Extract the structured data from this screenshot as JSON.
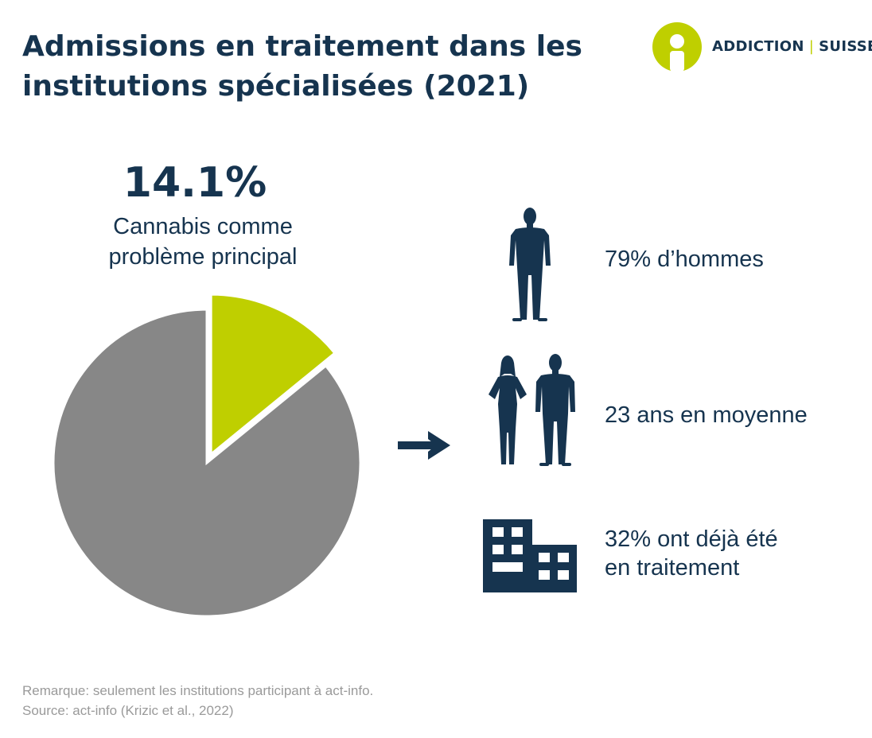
{
  "header": {
    "title_line1": "Admissions en traitement dans les",
    "title_line2": "institutions spécialisées (2021)"
  },
  "logo": {
    "left_text": "ADDICTION",
    "separator": "|",
    "right_text": "SUISSE",
    "accent_color": "#bfcf00"
  },
  "highlight": {
    "percent_label": "14.1%",
    "caption_line1": "Cannabis comme",
    "caption_line2": "problème principal"
  },
  "chart_data": {
    "type": "pie",
    "slices": [
      {
        "value": 14.1,
        "color": "#bfcf00",
        "exploded": true
      },
      {
        "value": 85.9,
        "color": "#878787",
        "exploded": false
      }
    ]
  },
  "stats": [
    {
      "icon": "man-silhouette-icon",
      "line1": "79% d’hommes",
      "line2": ""
    },
    {
      "icon": "couple-silhouette-icon",
      "line1": "23 ans en moyenne",
      "line2": ""
    },
    {
      "icon": "building-icon",
      "line1": "32% ont déjà été",
      "line2": "en traitement"
    }
  ],
  "colors": {
    "navy": "#16344f",
    "grey": "#878787",
    "lime": "#bfcf00",
    "footer": "#9a9a9a"
  },
  "footer": {
    "note": "Remarque: seulement les institutions participant à act-info.",
    "source": "Source: act-info (Krizic et al., 2022)"
  }
}
